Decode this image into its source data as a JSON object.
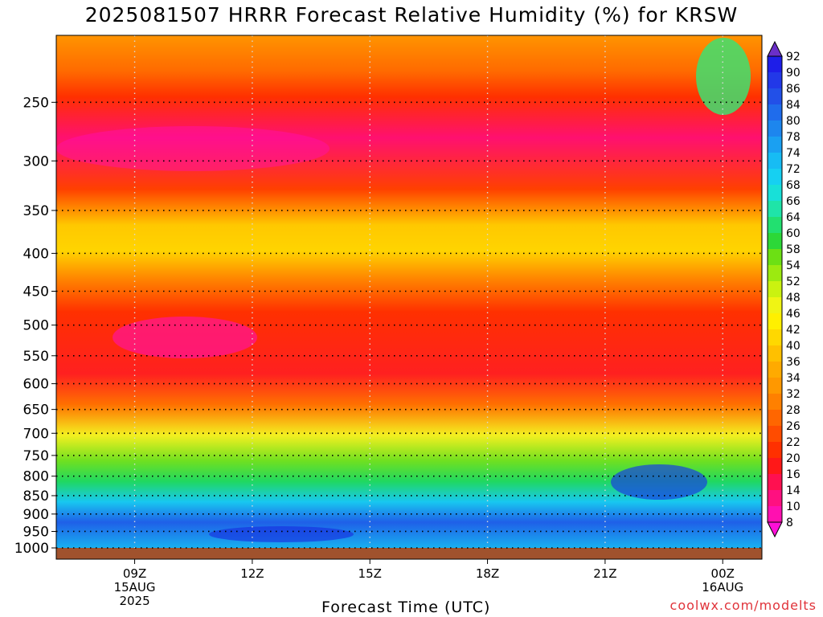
{
  "title": "2025081507 HRRR Forecast Relative Humidity (%) for KRSW",
  "xlabel": "Forecast Time (UTC)",
  "credit": "coolwx.com/modelts",
  "chart_data": {
    "type": "heatmap",
    "title": "2025081507 HRRR Forecast Relative Humidity (%) for KRSW",
    "xlabel": "Forecast Time (UTC)",
    "ylabel": "",
    "y_scale": "log-pressure (hPa, inverted)",
    "ylim": [
      1000,
      200
    ],
    "xlim_hours": [
      7,
      25
    ],
    "grid": true,
    "x_ticks": [
      {
        "hour": 9,
        "lines": [
          "09Z",
          "15AUG",
          "2025"
        ]
      },
      {
        "hour": 12,
        "lines": [
          "12Z"
        ]
      },
      {
        "hour": 15,
        "lines": [
          "15Z"
        ]
      },
      {
        "hour": 18,
        "lines": [
          "18Z"
        ]
      },
      {
        "hour": 21,
        "lines": [
          "21Z"
        ]
      },
      {
        "hour": 24,
        "lines": [
          "00Z",
          "16AUG"
        ]
      }
    ],
    "y_ticks": [
      250,
      300,
      350,
      400,
      450,
      500,
      550,
      600,
      650,
      700,
      750,
      800,
      850,
      900,
      950,
      1000
    ],
    "colorbar_levels": [
      92,
      90,
      86,
      84,
      80,
      78,
      74,
      72,
      68,
      66,
      64,
      60,
      58,
      54,
      52,
      48,
      46,
      42,
      40,
      36,
      34,
      32,
      28,
      26,
      22,
      20,
      16,
      14,
      10,
      8
    ],
    "colorbar_colors": [
      "#6a2fc8",
      "#1e1ee8",
      "#2238e8",
      "#2250e8",
      "#1f6cec",
      "#1d86ee",
      "#1aa0f2",
      "#17bcf4",
      "#16d0f2",
      "#18e0d8",
      "#1fe4a8",
      "#22e070",
      "#2cd838",
      "#6ce014",
      "#9cea10",
      "#caf210",
      "#f0f414",
      "#fff000",
      "#ffd800",
      "#ffc000",
      "#ffaa00",
      "#ff9800",
      "#ff8000",
      "#ff6600",
      "#ff4c00",
      "#ff3000",
      "#ff1818",
      "#ff1050",
      "#ff1080",
      "#ff10b0",
      "#ff10d8"
    ],
    "rh_profile_approx": [
      {
        "pressure": 220,
        "rh": 28
      },
      {
        "pressure": 250,
        "rh": 24
      },
      {
        "pressure": 300,
        "rh": 14
      },
      {
        "pressure": 350,
        "rh": 34
      },
      {
        "pressure": 400,
        "rh": 36
      },
      {
        "pressure": 450,
        "rh": 24
      },
      {
        "pressure": 500,
        "rh": 18
      },
      {
        "pressure": 550,
        "rh": 18
      },
      {
        "pressure": 600,
        "rh": 20
      },
      {
        "pressure": 650,
        "rh": 26
      },
      {
        "pressure": 700,
        "rh": 46
      },
      {
        "pressure": 750,
        "rh": 54
      },
      {
        "pressure": 800,
        "rh": 60
      },
      {
        "pressure": 850,
        "rh": 76
      },
      {
        "pressure": 900,
        "rh": 82
      },
      {
        "pressure": 950,
        "rh": 78
      },
      {
        "pressure": 1000,
        "rh": 86
      }
    ]
  }
}
